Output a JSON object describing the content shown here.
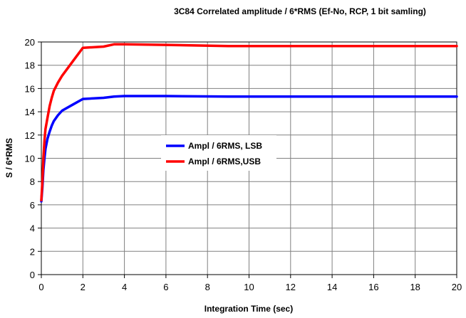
{
  "chart_data": {
    "type": "line",
    "title": "3C84 Correlated amplitude / 6*RMS (Ef-No, RCP, 1 bit samling)",
    "xlabel": "Integration Time (sec)",
    "ylabel": "S / 6*RMS",
    "xlim": [
      0,
      20
    ],
    "ylim": [
      0,
      20
    ],
    "xticks": [
      0,
      2,
      4,
      6,
      8,
      10,
      12,
      14,
      16,
      18,
      20
    ],
    "yticks": [
      0,
      2,
      4,
      6,
      8,
      10,
      12,
      14,
      16,
      18,
      20
    ],
    "grid": true,
    "legend_position": "center-left",
    "series": [
      {
        "name": "Ampl / 6RMS, LSB",
        "color": "#0000ff",
        "points": [
          [
            0.0,
            6.3
          ],
          [
            0.05,
            7.5
          ],
          [
            0.1,
            9.0
          ],
          [
            0.15,
            10.0
          ],
          [
            0.2,
            10.8
          ],
          [
            0.3,
            11.7
          ],
          [
            0.4,
            12.3
          ],
          [
            0.5,
            12.8
          ],
          [
            0.6,
            13.2
          ],
          [
            0.8,
            13.7
          ],
          [
            1.0,
            14.1
          ],
          [
            1.5,
            14.6
          ],
          [
            2.0,
            15.1
          ],
          [
            3.0,
            15.2
          ],
          [
            3.5,
            15.3
          ],
          [
            4.0,
            15.35
          ],
          [
            6.0,
            15.35
          ],
          [
            9.0,
            15.3
          ],
          [
            20.0,
            15.3
          ]
        ]
      },
      {
        "name": "Ampl / 6RMS,USB",
        "color": "#ff0000",
        "points": [
          [
            0.0,
            6.4
          ],
          [
            0.05,
            8.0
          ],
          [
            0.1,
            10.0
          ],
          [
            0.15,
            11.5
          ],
          [
            0.2,
            12.5
          ],
          [
            0.3,
            13.5
          ],
          [
            0.4,
            14.5
          ],
          [
            0.5,
            15.2
          ],
          [
            0.6,
            15.8
          ],
          [
            0.8,
            16.5
          ],
          [
            1.0,
            17.1
          ],
          [
            1.5,
            18.3
          ],
          [
            2.0,
            19.5
          ],
          [
            3.0,
            19.6
          ],
          [
            3.5,
            19.8
          ],
          [
            4.0,
            19.8
          ],
          [
            6.0,
            19.75
          ],
          [
            9.0,
            19.65
          ],
          [
            20.0,
            19.65
          ]
        ]
      }
    ]
  }
}
